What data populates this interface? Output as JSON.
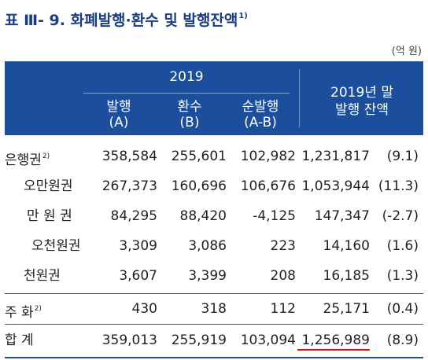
{
  "title": {
    "main": "표 Ⅲ- 9. 화폐발행·환수 및 발행잔액",
    "sup": "1)"
  },
  "unit": "(억 원)",
  "header": {
    "year": "2019",
    "col1": "발행",
    "col1_sub": "(A)",
    "col2": "환수",
    "col2_sub": "(B)",
    "col3": "순발행",
    "col3_sub": "(A-B)",
    "col4_line1": "2019년 말",
    "col4_line2": "발행 잔액"
  },
  "rows": [
    {
      "label": "은행권",
      "sup": "2)",
      "issue": "358,584",
      "retire": "255,601",
      "net": "102,982",
      "balance": "1,231,817",
      "rate": "(9.1)"
    },
    {
      "label": "오만원권",
      "issue": "267,373",
      "retire": "160,696",
      "net": "106,676",
      "balance": "1,053,944",
      "rate": "(11.3)"
    },
    {
      "label": "만 원 권",
      "issue": "84,295",
      "retire": "88,420",
      "net": "-4,125",
      "balance": "147,347",
      "rate": "(-2.7)"
    },
    {
      "label": "오천원권",
      "issue": "3,309",
      "retire": "3,086",
      "net": "223",
      "balance": "14,160",
      "rate": "(1.6)"
    },
    {
      "label": "천원권",
      "issue": "3,607",
      "retire": "3,399",
      "net": "208",
      "balance": "16,185",
      "rate": "(1.3)"
    },
    {
      "label": "주 화",
      "sup": "2)",
      "issue": "430",
      "retire": "318",
      "net": "112",
      "balance": "25,171",
      "rate": "(0.4)"
    },
    {
      "label": "합 계",
      "issue": "359,013",
      "retire": "255,919",
      "net": "103,094",
      "balance": "1,256,989",
      "rate": "(8.9)"
    }
  ],
  "colors": {
    "header_bg": "#1b4f9e",
    "title": "#1a3d84",
    "highlight": "#e60012"
  }
}
